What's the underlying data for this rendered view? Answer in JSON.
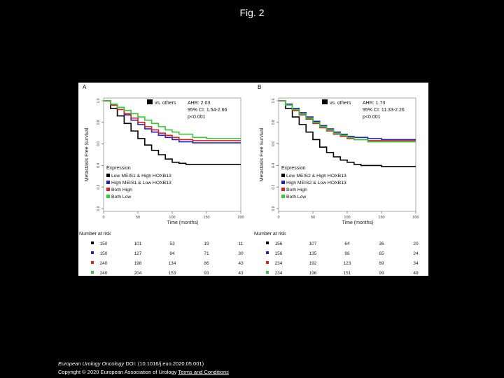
{
  "slide": {
    "title": "Fig. 2"
  },
  "footer": {
    "journal": "European Urology Oncology",
    "doi_text": " DOI: (10.1016/j.euo.2020.05.001)",
    "copyright": "Copyright © 2020 European Association of Urology",
    "link": "Terms and Conditions"
  },
  "chart_data": [
    {
      "type": "line",
      "panel_label": "A",
      "ylabel": "Metastasis Free Survival",
      "xlabel": "Time (months)",
      "xlim": [
        0,
        200
      ],
      "ylim": [
        0,
        1
      ],
      "xticks": [
        0,
        50,
        100,
        150,
        200
      ],
      "yticks": [
        0.0,
        0.2,
        0.4,
        0.6,
        0.8,
        1.0
      ],
      "hr_legend": {
        "label": "vs. others",
        "lines": [
          "AHR: 2.03",
          "95% CI: 1.54-2.66",
          "p<0.001"
        ]
      },
      "legend_title": "Expression",
      "series": [
        {
          "name": "Low MEIS1 & High HOXB13",
          "color": "#000000",
          "x": [
            0,
            10,
            20,
            30,
            40,
            50,
            60,
            70,
            80,
            90,
            100,
            110,
            120,
            150,
            200
          ],
          "y": [
            1,
            0.93,
            0.86,
            0.79,
            0.72,
            0.65,
            0.59,
            0.54,
            0.5,
            0.46,
            0.43,
            0.42,
            0.41,
            0.41,
            0.41
          ]
        },
        {
          "name": "High MEIS1 & Low HOXB13",
          "color": "#1f22c9",
          "x": [
            0,
            10,
            20,
            30,
            40,
            50,
            60,
            70,
            80,
            90,
            100,
            110,
            130,
            150,
            200
          ],
          "y": [
            1,
            0.96,
            0.92,
            0.87,
            0.82,
            0.78,
            0.74,
            0.71,
            0.68,
            0.66,
            0.64,
            0.62,
            0.61,
            0.61,
            0.61
          ]
        },
        {
          "name": "Both High",
          "color": "#e02020",
          "x": [
            0,
            10,
            20,
            30,
            40,
            50,
            60,
            70,
            80,
            90,
            100,
            110,
            130,
            150,
            200
          ],
          "y": [
            1,
            0.96,
            0.92,
            0.88,
            0.84,
            0.8,
            0.76,
            0.73,
            0.7,
            0.68,
            0.66,
            0.64,
            0.63,
            0.63,
            0.63
          ]
        },
        {
          "name": "Both Low",
          "color": "#33cc33",
          "x": [
            0,
            10,
            20,
            30,
            40,
            50,
            60,
            70,
            80,
            90,
            100,
            110,
            130,
            150,
            200
          ],
          "y": [
            1,
            0.97,
            0.94,
            0.91,
            0.88,
            0.85,
            0.82,
            0.79,
            0.76,
            0.73,
            0.71,
            0.69,
            0.66,
            0.65,
            0.65
          ]
        }
      ],
      "risk_table": {
        "title": "Number at risk",
        "rows": [
          {
            "color": "#000000",
            "values": [
              150,
              101,
              53,
              19,
              11
            ]
          },
          {
            "color": "#1f22c9",
            "values": [
              150,
              127,
              84,
              71,
              30
            ]
          },
          {
            "color": "#e02020",
            "values": [
              240,
              198,
              134,
              86,
              43
            ]
          },
          {
            "color": "#33cc33",
            "values": [
              240,
              204,
              153,
              93,
              43
            ]
          }
        ]
      }
    },
    {
      "type": "line",
      "panel_label": "B",
      "ylabel": "Metastasis Free Survival",
      "xlabel": "Time (months)",
      "xlim": [
        0,
        200
      ],
      "ylim": [
        0,
        1
      ],
      "xticks": [
        0,
        50,
        100,
        150,
        200
      ],
      "yticks": [
        0.0,
        0.2,
        0.4,
        0.6,
        0.8,
        1.0
      ],
      "hr_legend": {
        "label": "vs. others",
        "lines": [
          "AHR: 1.73",
          "95% CI: 11.33-2.26",
          "p<0.001"
        ]
      },
      "legend_title": "Expression",
      "series": [
        {
          "name": "Low MEIS2 & High HOXB13",
          "color": "#000000",
          "x": [
            0,
            10,
            20,
            30,
            40,
            50,
            60,
            70,
            80,
            90,
            100,
            110,
            120,
            150,
            200
          ],
          "y": [
            1,
            0.93,
            0.85,
            0.78,
            0.71,
            0.64,
            0.57,
            0.52,
            0.48,
            0.45,
            0.43,
            0.41,
            0.4,
            0.39,
            0.39
          ]
        },
        {
          "name": "High MEIS2 & Low HOXB13",
          "color": "#1f22c9",
          "x": [
            0,
            10,
            20,
            30,
            40,
            50,
            60,
            70,
            80,
            90,
            100,
            110,
            130,
            150,
            200
          ],
          "y": [
            1,
            0.97,
            0.93,
            0.89,
            0.85,
            0.81,
            0.77,
            0.74,
            0.71,
            0.69,
            0.67,
            0.66,
            0.65,
            0.64,
            0.64
          ]
        },
        {
          "name": "Both High",
          "color": "#e02020",
          "x": [
            0,
            10,
            20,
            30,
            40,
            50,
            60,
            70,
            80,
            90,
            100,
            110,
            130,
            150,
            200
          ],
          "y": [
            1,
            0.96,
            0.91,
            0.87,
            0.83,
            0.79,
            0.75,
            0.72,
            0.69,
            0.67,
            0.65,
            0.64,
            0.63,
            0.63,
            0.63
          ]
        },
        {
          "name": "Both Low",
          "color": "#33cc33",
          "x": [
            0,
            10,
            20,
            30,
            40,
            50,
            60,
            70,
            80,
            90,
            100,
            110,
            130,
            150,
            200
          ],
          "y": [
            1,
            0.96,
            0.92,
            0.88,
            0.84,
            0.8,
            0.76,
            0.73,
            0.7,
            0.68,
            0.66,
            0.64,
            0.62,
            0.62,
            0.62
          ]
        }
      ],
      "risk_table": {
        "title": "Number at risk",
        "rows": [
          {
            "color": "#000000",
            "values": [
              156,
              107,
              64,
              36,
              20
            ]
          },
          {
            "color": "#1f22c9",
            "values": [
              156,
              135,
              96,
              65,
              24
            ]
          },
          {
            "color": "#e02020",
            "values": [
              234,
              192,
              123,
              69,
              34
            ]
          },
          {
            "color": "#33cc33",
            "values": [
              234,
              196,
              151,
              99,
              49
            ]
          }
        ]
      }
    }
  ]
}
